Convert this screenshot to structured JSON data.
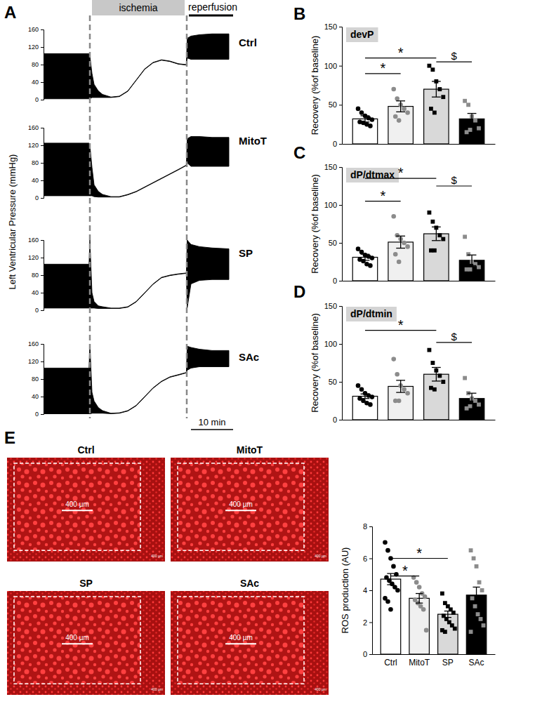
{
  "chart_data": [
    {
      "type": "area",
      "panel": "A",
      "ylabel": "Left Ventricular Pressure (mmHg)",
      "x": [
        0,
        10.8,
        11,
        11.5,
        12,
        13,
        14,
        16,
        18,
        20,
        22,
        24,
        26,
        28,
        30,
        32,
        33.9,
        34.1,
        35,
        37,
        40,
        44
      ],
      "xlim": [
        0,
        45
      ],
      "ylim": [
        0,
        160
      ],
      "yticks": [
        0,
        40,
        80,
        120,
        160
      ],
      "tick_labels": "y",
      "series": [
        {
          "name": "Ctrl",
          "color": "#000000",
          "upper": [
            105,
            105,
            100,
            60,
            35,
            20,
            12,
            6,
            8,
            20,
            45,
            70,
            85,
            91,
            88,
            82,
            80,
            140,
            145,
            148,
            150,
            150
          ],
          "lower": [
            2,
            2,
            2,
            5,
            5,
            5,
            5,
            5,
            7,
            19,
            44,
            69,
            84,
            90,
            87,
            81,
            79,
            95,
            92,
            92,
            92,
            92
          ]
        },
        {
          "name": "MitoT",
          "color": "#000000",
          "upper": [
            125,
            125,
            120,
            70,
            30,
            15,
            8,
            3,
            3,
            8,
            15,
            25,
            35,
            45,
            55,
            65,
            75,
            135,
            140,
            140,
            138,
            138
          ],
          "lower": [
            5,
            5,
            5,
            5,
            3,
            2,
            2,
            2,
            2,
            7,
            14,
            24,
            34,
            44,
            54,
            64,
            74,
            80,
            72,
            72,
            72,
            72
          ]
        },
        {
          "name": "SP",
          "color": "#000000",
          "upper": [
            105,
            105,
            160,
            40,
            20,
            10,
            8,
            5,
            5,
            8,
            20,
            40,
            60,
            75,
            80,
            83,
            85,
            160,
            150,
            145,
            142,
            140
          ],
          "lower": [
            5,
            5,
            5,
            5,
            5,
            4,
            4,
            4,
            4,
            7,
            19,
            39,
            59,
            74,
            79,
            82,
            84,
            5,
            60,
            68,
            70,
            70
          ]
        },
        {
          "name": "SAc",
          "color": "#000000",
          "upper": [
            105,
            105,
            160,
            50,
            30,
            15,
            8,
            2,
            3,
            8,
            20,
            40,
            60,
            75,
            85,
            90,
            95,
            155,
            152,
            148,
            145,
            145
          ],
          "lower": [
            0,
            0,
            0,
            2,
            2,
            2,
            2,
            1,
            2,
            7,
            19,
            39,
            59,
            74,
            84,
            89,
            94,
            100,
            105,
            108,
            108,
            108
          ]
        }
      ],
      "annotations": [
        {
          "text": "ischemia",
          "x": [
            11,
            34
          ]
        },
        {
          "text": "reperfusion",
          "x": [
            34,
            45
          ]
        }
      ],
      "scale_bar": {
        "label": "10 min",
        "length": 10
      }
    },
    {
      "type": "bar",
      "panel": "B",
      "title": "devP",
      "ylabel": "Recovery (%of baseline)",
      "categories": [
        null,
        null,
        null,
        null
      ],
      "values": [
        32,
        48,
        70,
        32
      ],
      "errors": [
        4,
        7,
        10,
        7
      ],
      "points": [
        [
          45,
          40,
          36,
          33,
          31,
          28,
          27,
          25,
          23
        ],
        [
          70,
          58,
          50,
          45,
          40,
          35,
          30
        ],
        [
          100,
          95,
          80,
          70,
          60,
          45,
          40
        ],
        [
          55,
          50,
          35,
          30,
          20,
          15,
          18
        ]
      ],
      "colors": [
        "#ffffff",
        "#f0f0f0",
        "#d9d9d9",
        "#000000"
      ],
      "point_colors": [
        "#000000",
        "#8c8c8c",
        "#000000",
        "#8c8c8c"
      ],
      "marker": [
        "circle",
        "circle",
        "square",
        "square"
      ],
      "ylim": [
        0,
        150
      ],
      "yticks": [
        0,
        50,
        100,
        150
      ],
      "annotations": [
        {
          "text": "*",
          "from": 0,
          "to": 1,
          "y": 90
        },
        {
          "text": "*",
          "from": 0,
          "to": 2,
          "y": 110
        },
        {
          "text": "$",
          "from": 2,
          "to": 3,
          "y": 105
        }
      ]
    },
    {
      "type": "bar",
      "panel": "C",
      "title": "dP/dtmax",
      "ylabel": "Recovery (%of baseline)",
      "categories": [
        null,
        null,
        null,
        null
      ],
      "values": [
        31,
        51,
        62,
        27
      ],
      "errors": [
        4,
        8,
        9,
        7
      ],
      "points": [
        [
          42,
          38,
          34,
          32,
          30,
          28,
          26,
          22,
          20
        ],
        [
          85,
          60,
          55,
          50,
          45,
          35,
          25
        ],
        [
          90,
          78,
          70,
          60,
          55,
          40,
          40
        ],
        [
          58,
          35,
          25,
          22,
          18,
          15,
          15
        ]
      ],
      "colors": [
        "#ffffff",
        "#f0f0f0",
        "#d9d9d9",
        "#000000"
      ],
      "point_colors": [
        "#000000",
        "#8c8c8c",
        "#000000",
        "#8c8c8c"
      ],
      "marker": [
        "circle",
        "circle",
        "square",
        "square"
      ],
      "ylim": [
        0,
        150
      ],
      "yticks": [
        0,
        50,
        100,
        150
      ],
      "annotations": [
        {
          "text": "*",
          "from": 0,
          "to": 1,
          "y": 105
        },
        {
          "text": "*",
          "from": 0,
          "to": 2,
          "y": 135
        },
        {
          "text": "$",
          "from": 2,
          "to": 3,
          "y": 125
        }
      ]
    },
    {
      "type": "bar",
      "panel": "D",
      "title": "dP/dtmin",
      "ylabel": "Recovery (%of baseline)",
      "categories": [
        null,
        null,
        null,
        null
      ],
      "values": [
        31,
        44,
        60,
        28
      ],
      "errors": [
        3,
        8,
        9,
        7
      ],
      "points": [
        [
          45,
          40,
          35,
          32,
          30,
          28,
          25,
          22,
          20
        ],
        [
          80,
          60,
          45,
          40,
          35,
          25,
          25
        ],
        [
          92,
          75,
          65,
          58,
          50,
          42,
          40
        ],
        [
          55,
          35,
          28,
          25,
          20,
          15,
          18
        ]
      ],
      "colors": [
        "#ffffff",
        "#f0f0f0",
        "#d9d9d9",
        "#000000"
      ],
      "point_colors": [
        "#000000",
        "#8c8c8c",
        "#000000",
        "#8c8c8c"
      ],
      "marker": [
        "circle",
        "circle",
        "square",
        "square"
      ],
      "ylim": [
        0,
        150
      ],
      "yticks": [
        0,
        50,
        100,
        150
      ],
      "annotations": [
        {
          "text": "*",
          "from": 0,
          "to": 2,
          "y": 118
        },
        {
          "text": "$",
          "from": 2,
          "to": 3,
          "y": 102
        }
      ]
    },
    {
      "type": "bar",
      "panel": "E",
      "ylabel": "ROS production (AU)",
      "categories": [
        "Ctrl",
        "MitoT",
        "SP",
        "SAc"
      ],
      "values": [
        4.7,
        3.5,
        2.5,
        3.7
      ],
      "errors": [
        0.35,
        0.3,
        0.2,
        0.5
      ],
      "points": [
        [
          7.0,
          6.5,
          6.0,
          5.5,
          5.0,
          4.8,
          4.6,
          4.4,
          4.2,
          4.0,
          3.5,
          3.3,
          2.8
        ],
        [
          4.8,
          4.5,
          4.2,
          3.8,
          3.6,
          3.4,
          3.2,
          3.0,
          2.8,
          1.5
        ],
        [
          3.8,
          3.2,
          3.0,
          2.8,
          2.6,
          2.4,
          2.2,
          2.0,
          1.8,
          1.6,
          1.5,
          1.4
        ],
        [
          6.5,
          6.0,
          5.5,
          4.5,
          4.0,
          3.5,
          3.0,
          2.5,
          2.2,
          1.8,
          1.4
        ]
      ],
      "colors": [
        "#ffffff",
        "#f0f0f0",
        "#d9d9d9",
        "#000000"
      ],
      "point_colors": [
        "#000000",
        "#8c8c8c",
        "#000000",
        "#8c8c8c"
      ],
      "marker": [
        "circle",
        "circle",
        "square",
        "square"
      ],
      "ylim": [
        0,
        8
      ],
      "yticks": [
        0,
        2,
        4,
        6,
        8
      ],
      "annotations": [
        {
          "text": "*",
          "from": 0,
          "to": 1,
          "y": 4.9
        },
        {
          "text": "*",
          "from": 0,
          "to": 2,
          "y": 6.0
        }
      ],
      "images": [
        {
          "title": "Ctrl",
          "scale_label": "400 µm"
        },
        {
          "title": "MitoT",
          "scale_label": "400 µm"
        },
        {
          "title": "SP",
          "scale_label": "400 µm"
        },
        {
          "title": "SAc",
          "scale_label": "400 µm"
        }
      ]
    }
  ]
}
